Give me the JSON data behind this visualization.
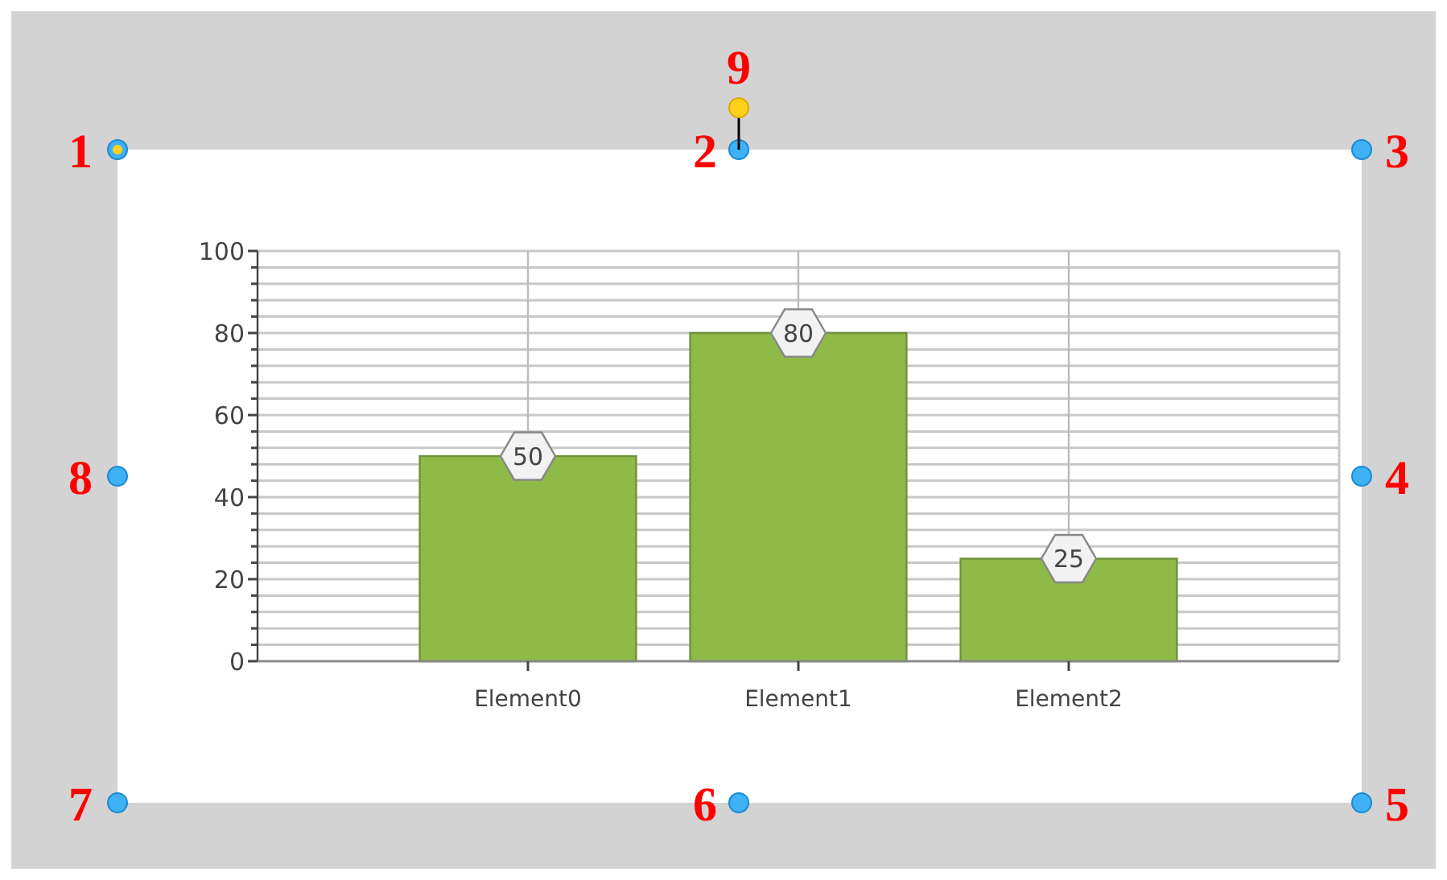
{
  "chart_data": {
    "type": "bar",
    "categories": [
      "Element0",
      "Element1",
      "Element2"
    ],
    "values": [
      50,
      80,
      25
    ],
    "color": "#8fba48",
    "data_labels": true,
    "grid": true,
    "ylim": [
      0,
      100
    ],
    "yticks": [
      0,
      {
        "value": 4,
        "label": null
      },
      {
        "value": 8,
        "label": null
      },
      {
        "value": 12,
        "label": null
      },
      {
        "value": 16,
        "label": null
      },
      20,
      {
        "value": 24,
        "label": null
      },
      {
        "value": 28,
        "label": null
      },
      {
        "value": 32,
        "label": null
      },
      {
        "value": 36,
        "label": null
      },
      40,
      {
        "value": 44,
        "label": null
      },
      {
        "value": 48,
        "label": null
      },
      {
        "value": 52,
        "label": null
      },
      {
        "value": 56,
        "label": null
      },
      60,
      {
        "value": 64,
        "label": null
      },
      {
        "value": 68,
        "label": null
      },
      {
        "value": 72,
        "label": null
      },
      {
        "value": 76,
        "label": null
      },
      80,
      {
        "value": 84,
        "label": null
      },
      {
        "value": 88,
        "label": null
      },
      {
        "value": 92,
        "label": null
      },
      {
        "value": 96,
        "label": null
      },
      100
    ],
    "annotations": [
      "1",
      "2",
      "3",
      "4",
      "5",
      "6",
      "7",
      "8",
      "9"
    ]
  }
}
